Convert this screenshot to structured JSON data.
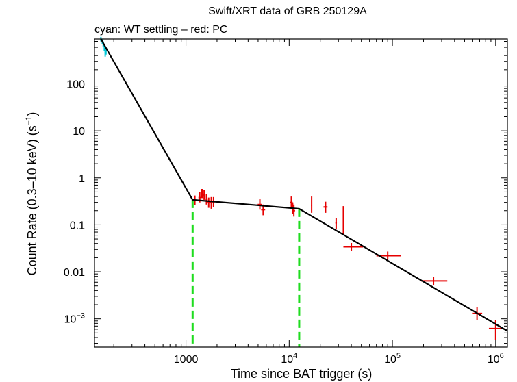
{
  "chart_data": {
    "type": "scatter",
    "title": "Swift/XRT data of GRB 250129A",
    "subtitle": "cyan: WT settling – red: PC",
    "xlabel": "Time since BAT trigger (s)",
    "ylabel_main": "Count Rate (0.3–10 keV) (s",
    "ylabel_sup": "−1",
    "ylabel_close": ")",
    "x_scale": "log",
    "y_scale": "log",
    "xlim": [
      130,
      1300000
    ],
    "ylim": [
      0.00025,
      900
    ],
    "x_ticks": [
      {
        "value": 1000,
        "base": "1000",
        "exp": ""
      },
      {
        "value": 10000,
        "base": "10",
        "exp": "4"
      },
      {
        "value": 100000,
        "base": "10",
        "exp": "5"
      },
      {
        "value": 1000000,
        "base": "10",
        "exp": "6"
      }
    ],
    "y_ticks": [
      {
        "value": 100,
        "base": "100",
        "exp": ""
      },
      {
        "value": 10,
        "base": "10",
        "exp": ""
      },
      {
        "value": 1,
        "base": "1",
        "exp": ""
      },
      {
        "value": 0.1,
        "base": "0.1",
        "exp": ""
      },
      {
        "value": 0.01,
        "base": "0.01",
        "exp": ""
      },
      {
        "value": 0.001,
        "base": "10",
        "exp": "−3"
      }
    ],
    "colors": {
      "wt": "#00c8d7",
      "pc": "#e60000",
      "model": "#000000",
      "breaks": "#1fdc1f",
      "axes": "#000000"
    },
    "series": [
      {
        "name": "WT settling",
        "points": [
          {
            "x": 150,
            "y": 900,
            "xerr": [
              148,
              152
            ],
            "yerr": [
              800,
              1000
            ]
          },
          {
            "x": 155,
            "y": 800,
            "xerr": [
              153,
              157
            ],
            "yerr": [
              700,
              900
            ]
          },
          {
            "x": 158,
            "y": 700,
            "xerr": [
              156,
              160
            ],
            "yerr": [
              600,
              800
            ]
          },
          {
            "x": 162,
            "y": 600,
            "xerr": [
              160,
              164
            ],
            "yerr": [
              500,
              700
            ]
          },
          {
            "x": 165,
            "y": 470,
            "xerr": [
              163,
              167
            ],
            "yerr": [
              380,
              560
            ]
          },
          {
            "x": 168,
            "y": 500,
            "xerr": [
              166,
              170
            ],
            "yerr": [
              420,
              600
            ]
          }
        ]
      },
      {
        "name": "PC",
        "points": [
          {
            "x": 1220,
            "y": 0.33,
            "xerr": [
              1180,
              1260
            ],
            "yerr": [
              0.26,
              0.42
            ]
          },
          {
            "x": 1360,
            "y": 0.38,
            "xerr": [
              1320,
              1400
            ],
            "yerr": [
              0.3,
              0.5
            ]
          },
          {
            "x": 1430,
            "y": 0.46,
            "xerr": [
              1400,
              1460
            ],
            "yerr": [
              0.37,
              0.58
            ]
          },
          {
            "x": 1500,
            "y": 0.43,
            "xerr": [
              1470,
              1530
            ],
            "yerr": [
              0.34,
              0.55
            ]
          },
          {
            "x": 1580,
            "y": 0.35,
            "xerr": [
              1550,
              1620
            ],
            "yerr": [
              0.27,
              0.45
            ]
          },
          {
            "x": 1660,
            "y": 0.3,
            "xerr": [
              1620,
              1700
            ],
            "yerr": [
              0.23,
              0.38
            ]
          },
          {
            "x": 1760,
            "y": 0.3,
            "xerr": [
              1710,
              1810
            ],
            "yerr": [
              0.22,
              0.39
            ]
          },
          {
            "x": 1850,
            "y": 0.31,
            "xerr": [
              1800,
              1900
            ],
            "yerr": [
              0.24,
              0.39
            ]
          },
          {
            "x": 5200,
            "y": 0.27,
            "xerr": [
              4950,
              5450
            ],
            "yerr": [
              0.21,
              0.35
            ]
          },
          {
            "x": 5600,
            "y": 0.21,
            "xerr": [
              5350,
              5850
            ],
            "yerr": [
              0.16,
              0.27
            ]
          },
          {
            "x": 10500,
            "y": 0.3,
            "xerr": [
              10200,
              10800
            ],
            "yerr": [
              0.23,
              0.4
            ]
          },
          {
            "x": 10800,
            "y": 0.23,
            "xerr": [
              10500,
              11100
            ],
            "yerr": [
              0.17,
              0.3
            ]
          },
          {
            "x": 11100,
            "y": 0.2,
            "xerr": [
              10800,
              11400
            ],
            "yerr": [
              0.15,
              0.27
            ]
          },
          {
            "x": 16500,
            "y": 0.26,
            "xerr": [
              16300,
              16700
            ],
            "yerr": [
              0.18,
              0.4
            ]
          },
          {
            "x": 22500,
            "y": 0.24,
            "xerr": [
              21500,
              23500
            ],
            "yerr": [
              0.18,
              0.31
            ]
          },
          {
            "x": 28500,
            "y": 0.11,
            "xerr": [
              28000,
              29000
            ],
            "yerr": [
              0.08,
              0.14
            ]
          },
          {
            "x": 33500,
            "y": 0.11,
            "xerr": [
              33000,
              34000
            ],
            "yerr": [
              0.06,
              0.25
            ]
          },
          {
            "x": 40000,
            "y": 0.034,
            "xerr": [
              33500,
              52000
            ],
            "yerr": [
              0.028,
              0.041
            ]
          },
          {
            "x": 90000,
            "y": 0.022,
            "xerr": [
              70000,
              120000
            ],
            "yerr": [
              0.018,
              0.027
            ]
          },
          {
            "x": 250000,
            "y": 0.0064,
            "xerr": [
              190000,
              340000
            ],
            "yerr": [
              0.0052,
              0.0077
            ]
          },
          {
            "x": 660000,
            "y": 0.0013,
            "xerr": [
              600000,
              740000
            ],
            "yerr": [
              0.00095,
              0.0018
            ]
          },
          {
            "x": 1000000,
            "y": 0.00062,
            "xerr": [
              860000,
              1150000
            ],
            "yerr": [
              0.00035,
              0.00095
            ]
          }
        ]
      }
    ],
    "model_line": [
      {
        "x": 150,
        "y": 900
      },
      {
        "x": 1160,
        "y": 0.34
      },
      {
        "x": 12500,
        "y": 0.22
      },
      {
        "x": 1300000,
        "y": 0.00055
      }
    ],
    "break_times": [
      1160,
      12500
    ]
  }
}
